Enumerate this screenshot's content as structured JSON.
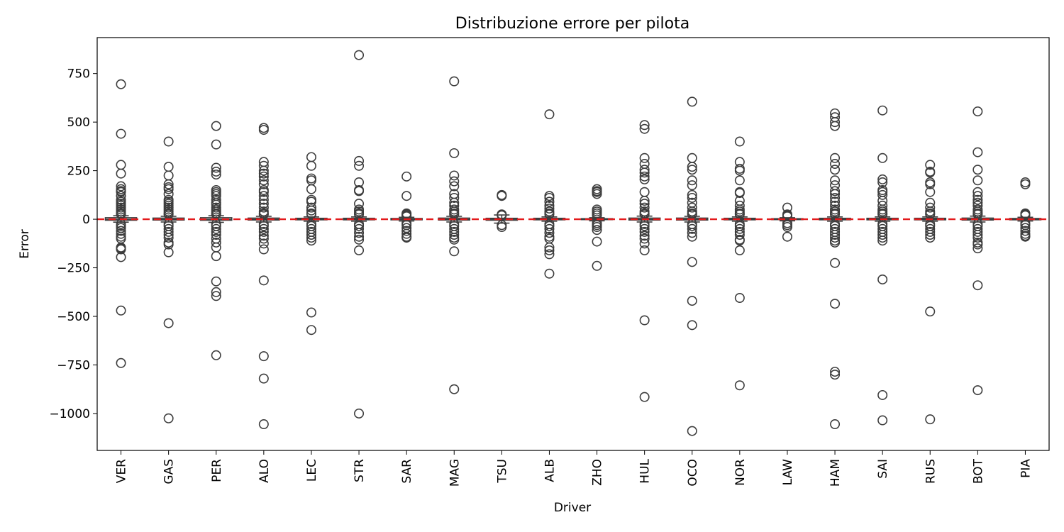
{
  "chart_data": {
    "type": "box",
    "title": "Distribuzione errore per pilota",
    "xlabel": "Driver",
    "ylabel": "Error",
    "ylim": [
      -1190,
      935
    ],
    "yticks": [
      750,
      500,
      250,
      0,
      -250,
      -500,
      -750,
      -1000
    ],
    "ytick_labels": [
      "750",
      "500",
      "250",
      "0",
      "−250",
      "−500",
      "−750",
      "−1000"
    ],
    "reference_line": {
      "y": 0,
      "color": "#e31a1c",
      "style": "dashed"
    },
    "grid": false,
    "categories": [
      "VER",
      "GAS",
      "PER",
      "ALO",
      "LEC",
      "STR",
      "SAR",
      "MAG",
      "TSU",
      "ALB",
      "ZHO",
      "HUL",
      "OCO",
      "NOR",
      "LAW",
      "HAM",
      "SAI",
      "RUS",
      "BOT",
      "PIA"
    ],
    "boxes": [
      {
        "q1": -5,
        "median": 0,
        "q3": 8,
        "whisker_low": -15,
        "whisker_high": 18
      },
      {
        "q1": -4,
        "median": 0,
        "q3": 6,
        "whisker_low": -14,
        "whisker_high": 15
      },
      {
        "q1": -5,
        "median": 0,
        "q3": 8,
        "whisker_low": -16,
        "whisker_high": 18
      },
      {
        "q1": -4,
        "median": 0,
        "q3": 6,
        "whisker_low": -14,
        "whisker_high": 15
      },
      {
        "q1": -3,
        "median": 0,
        "q3": 5,
        "whisker_low": -10,
        "whisker_high": 12
      },
      {
        "q1": -3,
        "median": 0,
        "q3": 5,
        "whisker_low": -10,
        "whisker_high": 12
      },
      {
        "q1": -3,
        "median": 0,
        "q3": 4,
        "whisker_low": -9,
        "whisker_high": 10
      },
      {
        "q1": -4,
        "median": 0,
        "q3": 6,
        "whisker_low": -14,
        "whisker_high": 15
      },
      {
        "q1": -5,
        "median": 0,
        "q3": 5,
        "whisker_low": -20,
        "whisker_high": 22
      },
      {
        "q1": -3,
        "median": 0,
        "q3": 5,
        "whisker_low": -10,
        "whisker_high": 12
      },
      {
        "q1": -2,
        "median": 0,
        "q3": 3,
        "whisker_low": -8,
        "whisker_high": 8
      },
      {
        "q1": -4,
        "median": 0,
        "q3": 6,
        "whisker_low": -14,
        "whisker_high": 16
      },
      {
        "q1": -4,
        "median": 0,
        "q3": 6,
        "whisker_low": -14,
        "whisker_high": 15
      },
      {
        "q1": -3,
        "median": 0,
        "q3": 5,
        "whisker_low": -10,
        "whisker_high": 12
      },
      {
        "q1": -2,
        "median": 0,
        "q3": 3,
        "whisker_low": -8,
        "whisker_high": 8
      },
      {
        "q1": -3,
        "median": 0,
        "q3": 5,
        "whisker_low": -10,
        "whisker_high": 12
      },
      {
        "q1": -3,
        "median": 0,
        "q3": 5,
        "whisker_low": -10,
        "whisker_high": 12
      },
      {
        "q1": -3,
        "median": 0,
        "q3": 5,
        "whisker_low": -10,
        "whisker_high": 12
      },
      {
        "q1": -4,
        "median": 0,
        "q3": 6,
        "whisker_low": -14,
        "whisker_high": 16
      },
      {
        "q1": -3,
        "median": 0,
        "q3": 4,
        "whisker_low": -9,
        "whisker_high": 10
      }
    ],
    "outliers": [
      [
        695,
        440,
        280,
        235,
        170,
        155,
        145,
        140,
        120,
        100,
        90,
        80,
        70,
        60,
        50,
        40,
        30,
        25,
        -25,
        -35,
        -45,
        -60,
        -75,
        -90,
        -100,
        -145,
        -150,
        -155,
        -195,
        -470,
        -740
      ],
      [
        400,
        270,
        225,
        180,
        165,
        155,
        130,
        100,
        90,
        80,
        70,
        60,
        50,
        40,
        30,
        25,
        -25,
        -35,
        -50,
        -65,
        -80,
        -95,
        -120,
        -130,
        -170,
        -535,
        -1025
      ],
      [
        480,
        385,
        265,
        245,
        230,
        150,
        140,
        130,
        120,
        100,
        85,
        75,
        60,
        50,
        40,
        30,
        25,
        -25,
        -35,
        -50,
        -65,
        -80,
        -100,
        -120,
        -145,
        -190,
        -320,
        -375,
        -395,
        -700
      ],
      [
        470,
        460,
        295,
        275,
        250,
        235,
        220,
        200,
        180,
        150,
        140,
        120,
        100,
        80,
        60,
        40,
        30,
        25,
        -25,
        -35,
        -50,
        -65,
        -85,
        -100,
        -125,
        -155,
        -315,
        -705,
        -820,
        -1055
      ],
      [
        320,
        275,
        210,
        200,
        155,
        100,
        90,
        60,
        45,
        30,
        25,
        -25,
        -35,
        -50,
        -65,
        -80,
        -95,
        -110,
        -480,
        -570
      ],
      [
        845,
        300,
        275,
        190,
        150,
        145,
        80,
        50,
        40,
        30,
        25,
        -25,
        -35,
        -50,
        -70,
        -90,
        -105,
        -160,
        -1000
      ],
      [
        220,
        120,
        30,
        25,
        20,
        15,
        -20,
        -30,
        -45,
        -60,
        -75,
        -90,
        -95
      ],
      [
        710,
        340,
        225,
        195,
        170,
        130,
        110,
        85,
        70,
        50,
        40,
        30,
        25,
        -25,
        -35,
        -50,
        -65,
        -80,
        -95,
        -105,
        -165,
        -875
      ],
      [
        125,
        120,
        25,
        20,
        -30,
        -40
      ],
      [
        540,
        120,
        110,
        90,
        70,
        55,
        40,
        30,
        25,
        -25,
        -35,
        -50,
        -70,
        -90,
        -100,
        -145,
        -160,
        -180,
        -280
      ],
      [
        155,
        145,
        140,
        130,
        50,
        40,
        30,
        20,
        -20,
        -30,
        -40,
        -55,
        -115,
        -240
      ],
      [
        485,
        465,
        315,
        285,
        255,
        240,
        220,
        205,
        140,
        95,
        80,
        60,
        40,
        30,
        25,
        -25,
        -35,
        -50,
        -65,
        -85,
        -100,
        -125,
        -160,
        -520,
        -915
      ],
      [
        605,
        315,
        270,
        255,
        200,
        175,
        125,
        110,
        85,
        60,
        40,
        30,
        25,
        -25,
        -35,
        -50,
        -70,
        -90,
        -220,
        -420,
        -545,
        -1090
      ],
      [
        400,
        295,
        260,
        250,
        200,
        140,
        135,
        95,
        70,
        50,
        40,
        30,
        25,
        -25,
        -35,
        -50,
        -65,
        -80,
        -105,
        -110,
        -160,
        -405,
        -855
      ],
      [
        60,
        25,
        20,
        15,
        -20,
        -30,
        -40,
        -90
      ],
      [
        545,
        525,
        500,
        480,
        315,
        285,
        255,
        200,
        175,
        145,
        130,
        110,
        90,
        70,
        50,
        40,
        30,
        25,
        -25,
        -35,
        -50,
        -65,
        -80,
        -95,
        -110,
        -120,
        -225,
        -435,
        -785,
        -800,
        -1055
      ],
      [
        560,
        315,
        205,
        190,
        150,
        140,
        125,
        95,
        70,
        50,
        40,
        30,
        25,
        -25,
        -35,
        -50,
        -65,
        -80,
        -95,
        -110,
        -310,
        -905,
        -1035
      ],
      [
        280,
        245,
        240,
        190,
        180,
        140,
        85,
        60,
        40,
        30,
        25,
        -25,
        -35,
        -50,
        -65,
        -80,
        -95,
        -475,
        -1030
      ],
      [
        555,
        345,
        255,
        200,
        140,
        120,
        100,
        85,
        70,
        50,
        40,
        30,
        25,
        -25,
        -35,
        -50,
        -65,
        -80,
        -95,
        -120,
        -130,
        -150,
        -340,
        -880
      ],
      [
        190,
        180,
        30,
        25,
        20,
        -20,
        -30,
        -45,
        -60,
        -75,
        -85,
        -90
      ]
    ]
  }
}
